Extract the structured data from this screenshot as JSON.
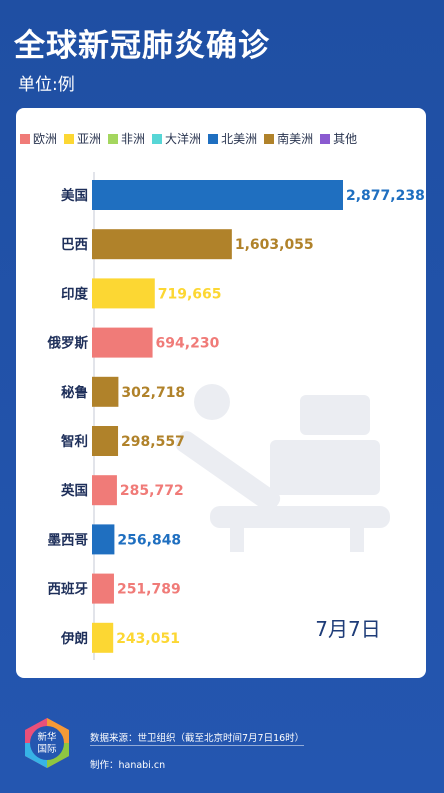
{
  "header": {
    "title": "全球新冠肺炎确诊",
    "subtitle": "单位:例"
  },
  "footer": {
    "logo_text_1": "新华",
    "logo_text_2": "国际",
    "source": "数据来源：世卫组织（截至北京时间7月7日16时）",
    "credit": "制作：hanabi.cn"
  },
  "colors": {
    "欧洲": "#f07b78",
    "亚洲": "#fcd733",
    "非洲": "#a4d65e",
    "大洋洲": "#57d6d6",
    "北美洲": "#1f6fc0",
    "南美洲": "#b0822a",
    "其他": "#8a5ad0"
  },
  "chart_data": {
    "type": "bar",
    "orientation": "horizontal",
    "title": "全球新冠肺炎确诊",
    "unit": "单位:例",
    "date_label": "7月7日",
    "legend": [
      "欧洲",
      "亚洲",
      "非洲",
      "大洋洲",
      "北美洲",
      "南美洲",
      "其他"
    ],
    "categories": [
      "美国",
      "巴西",
      "印度",
      "俄罗斯",
      "秘鲁",
      "智利",
      "英国",
      "墨西哥",
      "西班牙",
      "伊朗"
    ],
    "values": [
      2877238,
      1603055,
      719665,
      694230,
      302718,
      298557,
      285772,
      256848,
      251789,
      243051
    ],
    "value_labels": [
      "2,877,238",
      "1,603,055",
      "719,665",
      "694,230",
      "302,718",
      "298,557",
      "285,772",
      "256,848",
      "251,789",
      "243,051"
    ],
    "regions": [
      "北美洲",
      "南美洲",
      "亚洲",
      "欧洲",
      "南美洲",
      "南美洲",
      "欧洲",
      "北美洲",
      "欧洲",
      "亚洲"
    ],
    "xlim": [
      0,
      2877238
    ]
  }
}
